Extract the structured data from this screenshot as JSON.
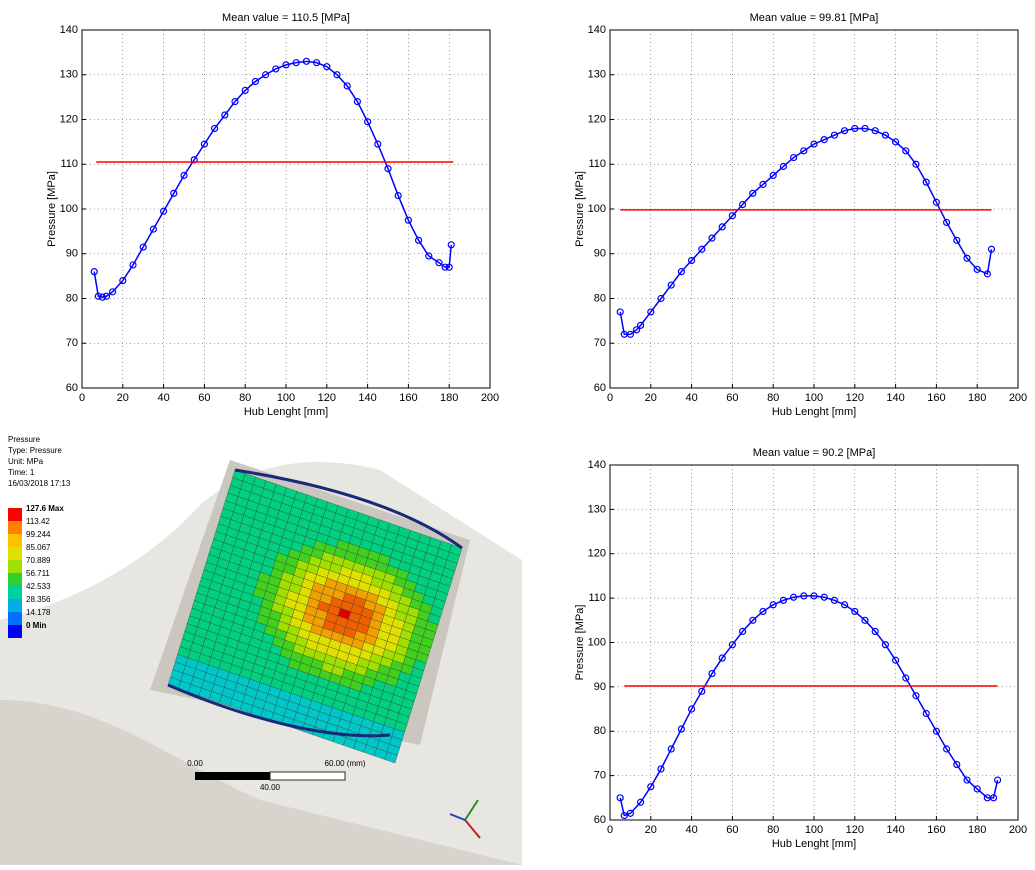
{
  "chart_data": [
    {
      "type": "line",
      "title": "Mean value = 110.5 [MPa]",
      "xlabel": "Hub Lenght [mm]",
      "ylabel": "Pressure [MPa]",
      "xlim": [
        0,
        200
      ],
      "xticks": [
        0,
        20,
        40,
        60,
        80,
        100,
        120,
        140,
        160,
        180,
        200
      ],
      "ylim": [
        60,
        140
      ],
      "yticks": [
        60,
        70,
        80,
        90,
        100,
        110,
        120,
        130,
        140
      ],
      "grid": true,
      "series": [
        {
          "color": "#0000ff",
          "marker": "circle",
          "x": [
            6,
            8,
            10,
            12,
            15,
            20,
            25,
            30,
            35,
            40,
            45,
            50,
            55,
            60,
            65,
            70,
            75,
            80,
            85,
            90,
            95,
            100,
            105,
            110,
            115,
            120,
            125,
            130,
            135,
            140,
            145,
            150,
            155,
            160,
            165,
            170,
            175,
            178,
            180,
            181
          ],
          "values": [
            86,
            80.5,
            80.3,
            80.5,
            81.5,
            84,
            87.5,
            91.5,
            95.5,
            99.5,
            103.5,
            107.5,
            111,
            114.5,
            118,
            121,
            124,
            126.5,
            128.5,
            130,
            131.3,
            132.2,
            132.7,
            133,
            132.7,
            131.8,
            130,
            127.5,
            124,
            119.5,
            114.5,
            109,
            103,
            97.5,
            93,
            89.5,
            88,
            87,
            87,
            92
          ]
        },
        {
          "color": "#ff0000",
          "x": [
            7,
            182
          ],
          "values": [
            110.5,
            110.5
          ]
        }
      ]
    },
    {
      "type": "line",
      "title": "Mean value = 99.81 [MPa]",
      "xlabel": "Hub Lenght [mm]",
      "ylabel": "Pressure [MPa]",
      "xlim": [
        0,
        200
      ],
      "xticks": [
        0,
        20,
        40,
        60,
        80,
        100,
        120,
        140,
        160,
        180,
        200
      ],
      "ylim": [
        60,
        140
      ],
      "yticks": [
        60,
        70,
        80,
        90,
        100,
        110,
        120,
        130,
        140
      ],
      "grid": true,
      "series": [
        {
          "color": "#0000ff",
          "marker": "circle",
          "x": [
            5,
            7,
            10,
            13,
            15,
            20,
            25,
            30,
            35,
            40,
            45,
            50,
            55,
            60,
            65,
            70,
            75,
            80,
            85,
            90,
            95,
            100,
            105,
            110,
            115,
            120,
            125,
            130,
            135,
            140,
            145,
            150,
            155,
            160,
            165,
            170,
            175,
            180,
            185,
            187
          ],
          "values": [
            77,
            72,
            72,
            73,
            74,
            77,
            80,
            83,
            86,
            88.5,
            91,
            93.5,
            96,
            98.5,
            101,
            103.5,
            105.5,
            107.5,
            109.5,
            111.5,
            113,
            114.5,
            115.5,
            116.5,
            117.5,
            118,
            118,
            117.5,
            116.5,
            115,
            113,
            110,
            106,
            101.5,
            97,
            93,
            89,
            86.5,
            85.5,
            91
          ]
        },
        {
          "color": "#ff0000",
          "x": [
            5,
            187
          ],
          "values": [
            99.81,
            99.81
          ]
        }
      ]
    },
    {
      "type": "line",
      "title": "Mean value = 90.2 [MPa]",
      "xlabel": "Hub Lenght [mm]",
      "ylabel": "Pressure [MPa]",
      "xlim": [
        0,
        200
      ],
      "xticks": [
        0,
        20,
        40,
        60,
        80,
        100,
        120,
        140,
        160,
        180,
        200
      ],
      "ylim": [
        60,
        140
      ],
      "yticks": [
        60,
        70,
        80,
        90,
        100,
        110,
        120,
        130,
        140
      ],
      "grid": true,
      "series": [
        {
          "color": "#0000ff",
          "marker": "circle",
          "x": [
            5,
            7,
            10,
            15,
            20,
            25,
            30,
            35,
            40,
            45,
            50,
            55,
            60,
            65,
            70,
            75,
            80,
            85,
            90,
            95,
            100,
            105,
            110,
            115,
            120,
            125,
            130,
            135,
            140,
            145,
            150,
            155,
            160,
            165,
            170,
            175,
            180,
            185,
            188,
            190
          ],
          "values": [
            65,
            61,
            61.5,
            64,
            67.5,
            71.5,
            76,
            80.5,
            85,
            89,
            93,
            96.5,
            99.5,
            102.5,
            105,
            107,
            108.5,
            109.5,
            110.2,
            110.5,
            110.5,
            110.2,
            109.5,
            108.5,
            107,
            105,
            102.5,
            99.5,
            96,
            92,
            88,
            84,
            80,
            76,
            72.5,
            69,
            67,
            65,
            65,
            69
          ]
        },
        {
          "color": "#ff0000",
          "x": [
            7,
            190
          ],
          "values": [
            90.2,
            90.2
          ]
        }
      ]
    }
  ],
  "fea_panel": {
    "header": [
      "Pressure",
      "Type: Pressure",
      "Unit: MPa",
      "Time: 1",
      "16/03/2018 17:13"
    ],
    "legend": [
      "127.6 Max",
      "113.42",
      "99.244",
      "85.067",
      "70.889",
      "56.711",
      "42.533",
      "28.356",
      "14.178",
      "0 Min"
    ],
    "scale_bar": {
      "start": "0.00",
      "end": "60.00 (mm)",
      "middle": "40.00"
    }
  }
}
